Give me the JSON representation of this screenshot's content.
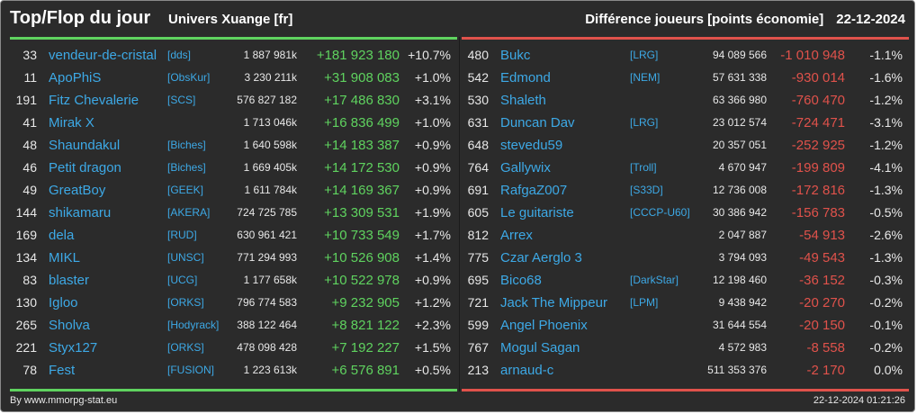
{
  "header": {
    "title": "Top/Flop du jour",
    "universe": "Univers Xuange [fr]",
    "metric": "Différence joueurs [points économie]",
    "date": "22-12-2024"
  },
  "top": [
    {
      "rank": "33",
      "name": "vendeur-de-cristal",
      "alliance": "[dds]",
      "points": "1 887 981k",
      "diff": "+181 923 180",
      "pct": "+10.7%"
    },
    {
      "rank": "11",
      "name": "ApoPhiS",
      "alliance": "[ObsKur]",
      "points": "3 230 211k",
      "diff": "+31 908 083",
      "pct": "+1.0%"
    },
    {
      "rank": "191",
      "name": "Fitz Chevalerie",
      "alliance": "[SCS]",
      "points": "576 827 182",
      "diff": "+17 486 830",
      "pct": "+3.1%"
    },
    {
      "rank": "41",
      "name": "Mirak X",
      "alliance": "",
      "points": "1 713 046k",
      "diff": "+16 836 499",
      "pct": "+1.0%"
    },
    {
      "rank": "48",
      "name": "Shaundakul",
      "alliance": "[Biches]",
      "points": "1 640 598k",
      "diff": "+14 183 387",
      "pct": "+0.9%"
    },
    {
      "rank": "46",
      "name": "Petit dragon",
      "alliance": "[Biches]",
      "points": "1 669 405k",
      "diff": "+14 172 530",
      "pct": "+0.9%"
    },
    {
      "rank": "49",
      "name": "GreatBoy",
      "alliance": "[GEEK]",
      "points": "1 611 784k",
      "diff": "+14 169 367",
      "pct": "+0.9%"
    },
    {
      "rank": "144",
      "name": "shikamaru",
      "alliance": "[AKERA]",
      "points": "724 725 785",
      "diff": "+13 309 531",
      "pct": "+1.9%"
    },
    {
      "rank": "169",
      "name": "dela",
      "alliance": "[RUD]",
      "points": "630 961 421",
      "diff": "+10 733 549",
      "pct": "+1.7%"
    },
    {
      "rank": "134",
      "name": "MIKL",
      "alliance": "[UNSC]",
      "points": "771 294 993",
      "diff": "+10 526 908",
      "pct": "+1.4%"
    },
    {
      "rank": "83",
      "name": "blaster",
      "alliance": "[UCG]",
      "points": "1 177 658k",
      "diff": "+10 522 978",
      "pct": "+0.9%"
    },
    {
      "rank": "130",
      "name": "Igloo",
      "alliance": "[ORKS]",
      "points": "796 774 583",
      "diff": "+9 232 905",
      "pct": "+1.2%"
    },
    {
      "rank": "265",
      "name": "Sholva",
      "alliance": "[Hodyrack]",
      "points": "388 122 464",
      "diff": "+8 821 122",
      "pct": "+2.3%"
    },
    {
      "rank": "221",
      "name": "Styx127",
      "alliance": "[ORKS]",
      "points": "478 098 428",
      "diff": "+7 192 227",
      "pct": "+1.5%"
    },
    {
      "rank": "78",
      "name": "Fest",
      "alliance": "[FUSION]",
      "points": "1 223 613k",
      "diff": "+6 576 891",
      "pct": "+0.5%"
    }
  ],
  "flop": [
    {
      "rank": "480",
      "name": "Bukc",
      "alliance": "[LRG]",
      "points": "94 089 566",
      "diff": "-1 010 948",
      "pct": "-1.1%"
    },
    {
      "rank": "542",
      "name": "Edmond",
      "alliance": "[NEM]",
      "points": "57 631 338",
      "diff": "-930 014",
      "pct": "-1.6%"
    },
    {
      "rank": "530",
      "name": "Shaleth",
      "alliance": "",
      "points": "63 366 980",
      "diff": "-760 470",
      "pct": "-1.2%"
    },
    {
      "rank": "631",
      "name": "Duncan Dav",
      "alliance": "[LRG]",
      "points": "23 012 574",
      "diff": "-724 471",
      "pct": "-3.1%"
    },
    {
      "rank": "648",
      "name": "stevedu59",
      "alliance": "",
      "points": "20 357 051",
      "diff": "-252 925",
      "pct": "-1.2%"
    },
    {
      "rank": "764",
      "name": "Gallywix",
      "alliance": "[Troll]",
      "points": "4 670 947",
      "diff": "-199 809",
      "pct": "-4.1%"
    },
    {
      "rank": "691",
      "name": "RafgaZ007",
      "alliance": "[S33D]",
      "points": "12 736 008",
      "diff": "-172 816",
      "pct": "-1.3%"
    },
    {
      "rank": "605",
      "name": "Le guitariste",
      "alliance": "[CCCP-U60]",
      "points": "30 386 942",
      "diff": "-156 783",
      "pct": "-0.5%"
    },
    {
      "rank": "812",
      "name": "Arrex",
      "alliance": "",
      "points": "2 047 887",
      "diff": "-54 913",
      "pct": "-2.6%"
    },
    {
      "rank": "775",
      "name": "Czar Aerglo 3",
      "alliance": "",
      "points": "3 794 093",
      "diff": "-49 543",
      "pct": "-1.3%"
    },
    {
      "rank": "695",
      "name": "Bico68",
      "alliance": "[DarkStar]",
      "points": "12 198 460",
      "diff": "-36 152",
      "pct": "-0.3%"
    },
    {
      "rank": "721",
      "name": "Jack The Mippeur",
      "alliance": "[LPM]",
      "points": "9 438 942",
      "diff": "-20 270",
      "pct": "-0.2%"
    },
    {
      "rank": "599",
      "name": "Angel Phoenix",
      "alliance": "",
      "points": "31 644 554",
      "diff": "-20 150",
      "pct": "-0.1%"
    },
    {
      "rank": "767",
      "name": "Mogul Sagan",
      "alliance": "",
      "points": "4 572 983",
      "diff": "-8 558",
      "pct": "-0.2%"
    },
    {
      "rank": "213",
      "name": "arnaud-c",
      "alliance": "",
      "points": "511 353 376",
      "diff": "-2 170",
      "pct": "0.0%"
    }
  ],
  "footer": {
    "credit": "By www.mmorpg-stat.eu",
    "timestamp": "22-12-2024 01:21:26"
  },
  "colors": {
    "background": "#2b2b2b",
    "gain": "#5fd35f",
    "loss": "#e0524b",
    "link": "#3da9e6",
    "text": "#e8e8e8"
  }
}
